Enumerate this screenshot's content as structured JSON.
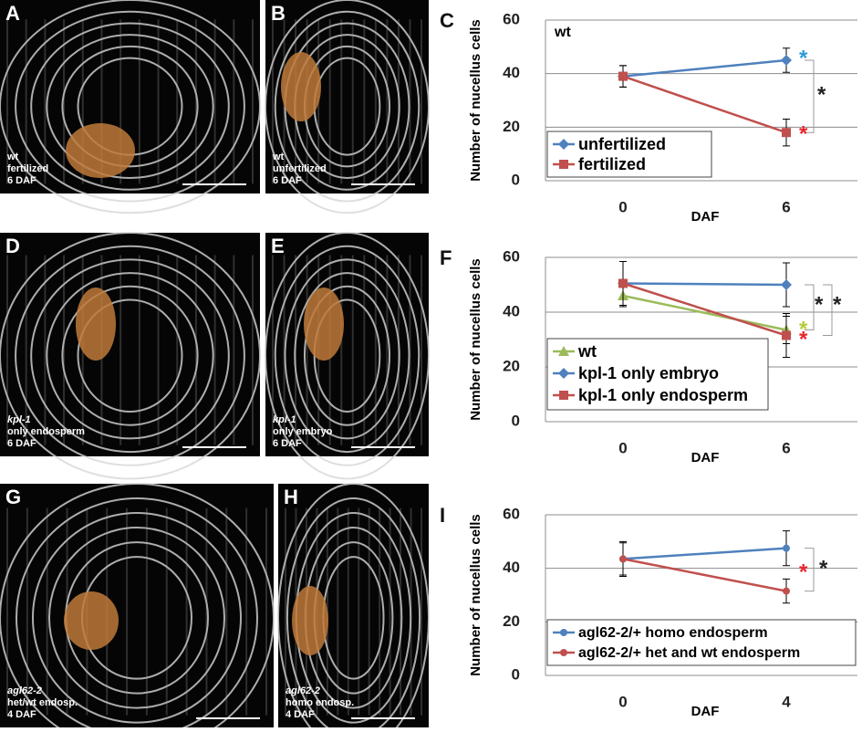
{
  "panels": [
    {
      "letter": "A",
      "caption": [
        "wt",
        "fertilized",
        "6 DAF"
      ]
    },
    {
      "letter": "B",
      "caption": [
        "wt",
        "unfertilized",
        "6 DAF"
      ]
    },
    {
      "letter": "D",
      "caption": [
        "kpl-1",
        "only endosperm",
        "6 DAF"
      ]
    },
    {
      "letter": "E",
      "caption": [
        "kpl-1",
        "only embryo",
        "6 DAF"
      ]
    },
    {
      "letter": "G",
      "caption": [
        "agl62-2",
        "het/wt endosp.",
        "4 DAF"
      ]
    },
    {
      "letter": "H",
      "caption": [
        "agl62-2",
        "homo endosp.",
        "4 DAF"
      ]
    }
  ],
  "chart_data": [
    {
      "type": "line",
      "letter": "C",
      "label": "wt",
      "y_label": "Number of nucellus cells",
      "x_label": "DAF",
      "categories": [
        "0",
        "6"
      ],
      "ylim": [
        0,
        60
      ],
      "yticks": [
        0,
        20,
        40,
        60
      ],
      "grid": true,
      "series": [
        {
          "name": "unfertilized",
          "color": "#4f81bd",
          "marker": "diamond",
          "values": [
            39,
            45
          ],
          "errors": [
            4,
            4.5
          ]
        },
        {
          "name": "fertilized",
          "color": "#c0504d",
          "marker": "square",
          "values": [
            39,
            18
          ],
          "errors": [
            4,
            5
          ]
        }
      ],
      "annotations": [
        {
          "text": "*",
          "color": "#2e9bd6"
        },
        {
          "text": "*",
          "color": "#e8262a"
        },
        {
          "text": "*",
          "color": "#222222"
        }
      ]
    },
    {
      "type": "line",
      "letter": "F",
      "y_label": "Number of nucellus cells",
      "x_label": "DAF",
      "categories": [
        "0",
        "6"
      ],
      "ylim": [
        0,
        60
      ],
      "yticks": [
        0,
        20,
        40,
        60
      ],
      "grid": true,
      "series": [
        {
          "name": "wt",
          "color": "#9bbb59",
          "marker": "triangle",
          "values": [
            46,
            33.5
          ],
          "errors": [
            4,
            5
          ]
        },
        {
          "name": "kpl-1 only embryo",
          "color": "#4f81bd",
          "marker": "diamond",
          "values": [
            50.5,
            50
          ],
          "errors": [
            8,
            8
          ]
        },
        {
          "name": "kpl-1 only endosperm",
          "color": "#c0504d",
          "marker": "square",
          "values": [
            50.5,
            31.5
          ],
          "errors": [
            8,
            8
          ]
        }
      ],
      "annotations": [
        {
          "text": "*",
          "color": "#b5cc3a"
        },
        {
          "text": "*",
          "color": "#e8262a"
        },
        {
          "text": "*",
          "color": "#222222"
        },
        {
          "text": "*",
          "color": "#222222"
        }
      ]
    },
    {
      "type": "line",
      "letter": "I",
      "y_label": "Number of nucellus cells",
      "x_label": "DAF",
      "categories": [
        "0",
        "4"
      ],
      "ylim": [
        0,
        60
      ],
      "yticks": [
        0,
        20,
        40,
        60
      ],
      "grid": true,
      "series": [
        {
          "name": "agl62-2/+ homo endosperm",
          "color": "#4f81bd",
          "marker": "circle",
          "values": [
            43.5,
            47.5
          ],
          "errors": [
            6.5,
            6.5
          ]
        },
        {
          "name": "agl62-2/+ het and wt endosperm",
          "color": "#c0504d",
          "marker": "circle",
          "values": [
            43.5,
            31.5
          ],
          "errors": [
            6,
            4.5
          ]
        }
      ],
      "annotations": [
        {
          "text": "*",
          "color": "#e8262a"
        },
        {
          "text": "*",
          "color": "#222222"
        }
      ]
    }
  ]
}
